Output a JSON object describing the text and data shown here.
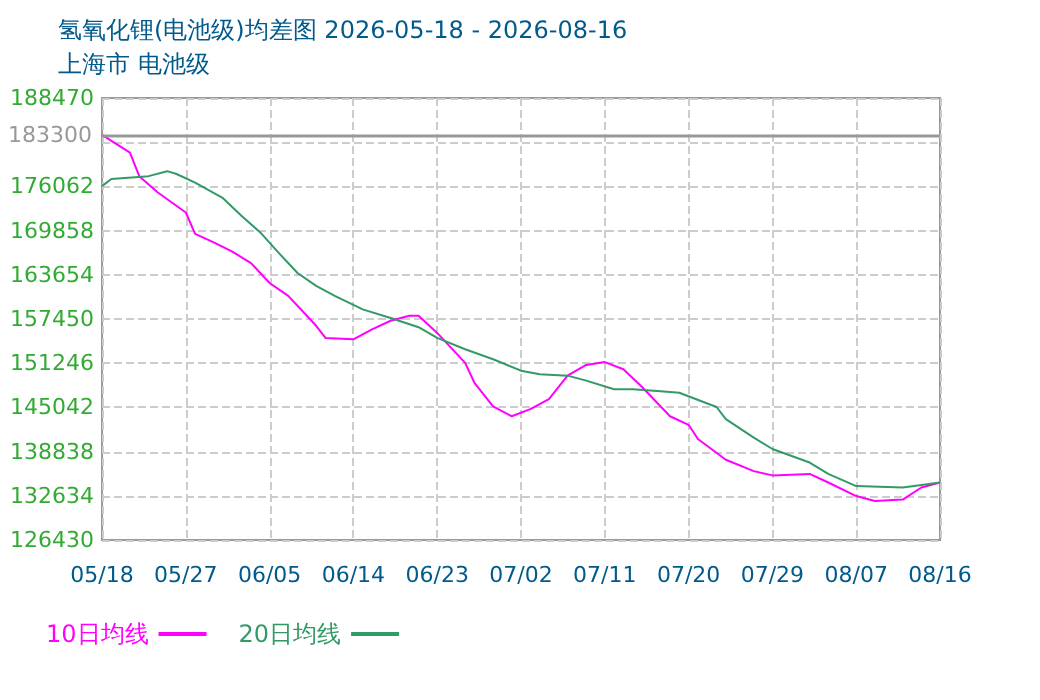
{
  "chart_data": {
    "type": "line",
    "title": "氢氧化锂(电池级)均差图 2026-05-18 - 2026-08-16",
    "subtitle": "上海市 电池级",
    "series": [
      {
        "name": "10日均线",
        "color": "#ff00ff",
        "x": [
          "2026-05-18",
          "2026-05-21",
          "2026-05-22",
          "2026-05-24",
          "2026-05-27",
          "2026-05-28",
          "2026-05-30",
          "2026-06-01",
          "2026-06-03",
          "2026-06-05",
          "2026-06-07",
          "2026-06-09",
          "2026-06-10",
          "2026-06-11",
          "2026-06-14",
          "2026-06-16",
          "2026-06-18",
          "2026-06-20",
          "2026-06-21",
          "2026-06-23",
          "2026-06-26",
          "2026-06-27",
          "2026-06-29",
          "2026-07-01",
          "2026-07-03",
          "2026-07-05",
          "2026-07-07",
          "2026-07-09",
          "2026-07-11",
          "2026-07-13",
          "2026-07-15",
          "2026-07-18",
          "2026-07-20",
          "2026-07-21",
          "2026-07-24",
          "2026-07-27",
          "2026-07-29",
          "2026-08-02",
          "2026-08-04",
          "2026-08-07",
          "2026-08-09",
          "2026-08-12",
          "2026-08-14",
          "2026-08-16"
        ],
        "values": [
          183300,
          180800,
          177500,
          175200,
          172400,
          169400,
          168200,
          166900,
          165300,
          162500,
          160700,
          157900,
          156500,
          154800,
          154600,
          156000,
          157200,
          157900,
          157900,
          155500,
          151300,
          148500,
          145200,
          143800,
          144800,
          146200,
          149500,
          151000,
          151400,
          150400,
          147900,
          143800,
          142600,
          140600,
          137700,
          136100,
          135500,
          135700,
          134500,
          132600,
          131900,
          132100,
          133800,
          134500
        ]
      },
      {
        "name": "20日均线",
        "color": "#339966",
        "x": [
          "2026-05-18",
          "2026-05-19",
          "2026-05-23",
          "2026-05-25",
          "2026-05-26",
          "2026-05-28",
          "2026-05-31",
          "2026-06-02",
          "2026-06-04",
          "2026-06-06",
          "2026-06-08",
          "2026-06-10",
          "2026-06-12",
          "2026-06-15",
          "2026-06-18",
          "2026-06-21",
          "2026-06-23",
          "2026-06-26",
          "2026-06-29",
          "2026-07-02",
          "2026-07-04",
          "2026-07-07",
          "2026-07-09",
          "2026-07-12",
          "2026-07-14",
          "2026-07-17",
          "2026-07-19",
          "2026-07-23",
          "2026-07-24",
          "2026-07-27",
          "2026-07-29",
          "2026-08-02",
          "2026-08-04",
          "2026-08-07",
          "2026-08-12",
          "2026-08-16"
        ],
        "values": [
          176100,
          177100,
          177500,
          178200,
          177800,
          176600,
          174400,
          171900,
          169600,
          166700,
          163900,
          162100,
          160700,
          158800,
          157600,
          156300,
          154800,
          153200,
          151800,
          150200,
          149700,
          149500,
          148800,
          147600,
          147600,
          147300,
          147100,
          145100,
          143400,
          140800,
          139200,
          137300,
          135700,
          134000,
          133800,
          134500
        ]
      }
    ],
    "xlim": [
      "2026-05-18",
      "2026-08-16"
    ],
    "xticks": [
      {
        "value": "2026-05-18",
        "label": "05/18"
      },
      {
        "value": "2026-05-27",
        "label": "05/27"
      },
      {
        "value": "2026-06-05",
        "label": "06/05"
      },
      {
        "value": "2026-06-14",
        "label": "06/14"
      },
      {
        "value": "2026-06-23",
        "label": "06/23"
      },
      {
        "value": "2026-07-02",
        "label": "07/02"
      },
      {
        "value": "2026-07-11",
        "label": "07/11"
      },
      {
        "value": "2026-07-20",
        "label": "07/20"
      },
      {
        "value": "2026-07-29",
        "label": "07/29"
      },
      {
        "value": "2026-08-07",
        "label": "08/07"
      },
      {
        "value": "2026-08-16",
        "label": "08/16"
      }
    ],
    "ylim": [
      126430,
      188470
    ],
    "yticks": [
      126430,
      132634,
      138838,
      145042,
      151246,
      157450,
      163654,
      169858,
      176062,
      {
        "value": 182266,
        "label": null
      },
      188470
    ],
    "ref_lines": [
      {
        "axis": "y",
        "value": 183300,
        "label": "183300",
        "color": "#999999"
      }
    ],
    "grid": true,
    "legend": "bottom left",
    "marker": "none",
    "line_style": "solid"
  }
}
